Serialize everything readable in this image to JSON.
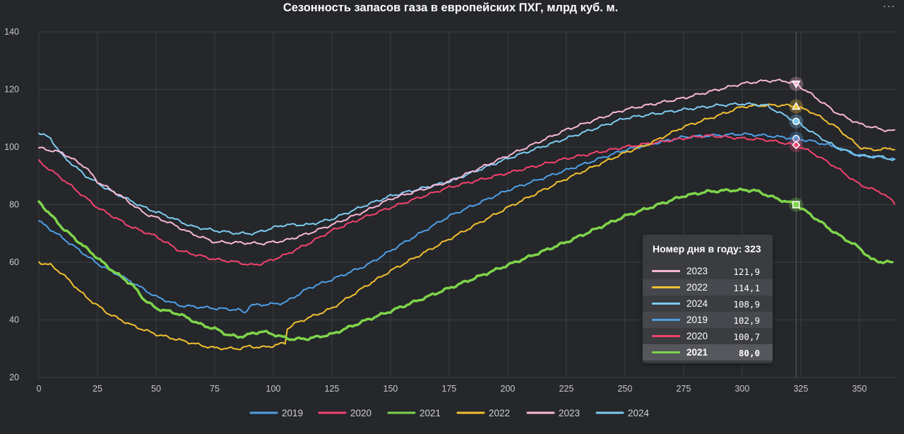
{
  "chart_data": {
    "type": "line",
    "title": "Сезонность запасов газа в европейских ПХГ, млрд куб. м.",
    "xlabel": "",
    "ylabel": "",
    "xlim": [
      0,
      366
    ],
    "ylim": [
      20,
      140
    ],
    "x_ticks": [
      "0",
      "25",
      "50",
      "75",
      "100",
      "125",
      "150",
      "175",
      "200",
      "225",
      "250",
      "275",
      "300",
      "325",
      "350"
    ],
    "y_ticks": [
      "20",
      "40",
      "60",
      "80",
      "100",
      "120",
      "140"
    ],
    "grid": true,
    "legend_position": "bottom",
    "cursor_day": 323,
    "series": [
      {
        "name": "2019",
        "color": "#4e9fe6",
        "width": 2,
        "points": [
          [
            0,
            74.3
          ],
          [
            10,
            68.5
          ],
          [
            25,
            59.5
          ],
          [
            40,
            53
          ],
          [
            50,
            48
          ],
          [
            60,
            45
          ],
          [
            75,
            44
          ],
          [
            85,
            43.5
          ],
          [
            88,
            42.5
          ],
          [
            90,
            45
          ],
          [
            100,
            45.5
          ],
          [
            105,
            46
          ],
          [
            115,
            51
          ],
          [
            125,
            54
          ],
          [
            140,
            59
          ],
          [
            150,
            64
          ],
          [
            175,
            76
          ],
          [
            200,
            85
          ],
          [
            225,
            92
          ],
          [
            250,
            99
          ],
          [
            275,
            103.5
          ],
          [
            300,
            104.5
          ],
          [
            310,
            104
          ],
          [
            323,
            102.9
          ],
          [
            330,
            102
          ],
          [
            340,
            100
          ],
          [
            350,
            97
          ],
          [
            360,
            96.5
          ],
          [
            365,
            95.5
          ]
        ]
      },
      {
        "name": "2020",
        "color": "#f2426c",
        "width": 2,
        "points": [
          [
            0,
            95
          ],
          [
            10,
            89
          ],
          [
            25,
            79
          ],
          [
            40,
            72
          ],
          [
            50,
            69
          ],
          [
            60,
            64
          ],
          [
            75,
            61
          ],
          [
            85,
            60
          ],
          [
            90,
            59
          ],
          [
            95,
            59.5
          ],
          [
            105,
            62.5
          ],
          [
            115,
            66.5
          ],
          [
            125,
            71
          ],
          [
            140,
            76
          ],
          [
            150,
            79
          ],
          [
            175,
            86
          ],
          [
            200,
            91
          ],
          [
            225,
            96
          ],
          [
            250,
            100
          ],
          [
            275,
            103
          ],
          [
            285,
            104
          ],
          [
            300,
            103
          ],
          [
            310,
            102.5
          ],
          [
            323,
            100.7
          ],
          [
            330,
            98
          ],
          [
            340,
            93
          ],
          [
            350,
            87
          ],
          [
            360,
            84
          ],
          [
            365,
            80.5
          ]
        ]
      },
      {
        "name": "2021",
        "color": "#7ed44a",
        "width": 3.5,
        "points": [
          [
            0,
            81
          ],
          [
            10,
            72
          ],
          [
            20,
            65
          ],
          [
            30,
            58
          ],
          [
            40,
            52
          ],
          [
            45,
            47
          ],
          [
            50,
            44
          ],
          [
            60,
            42
          ],
          [
            70,
            38
          ],
          [
            75,
            37
          ],
          [
            80,
            35
          ],
          [
            85,
            34
          ],
          [
            90,
            35
          ],
          [
            95,
            36
          ],
          [
            100,
            35
          ],
          [
            104,
            34
          ],
          [
            108,
            33.3
          ],
          [
            115,
            33.5
          ],
          [
            125,
            35
          ],
          [
            140,
            40
          ],
          [
            150,
            43
          ],
          [
            175,
            51
          ],
          [
            200,
            59
          ],
          [
            225,
            67
          ],
          [
            250,
            76
          ],
          [
            275,
            83
          ],
          [
            285,
            84.5
          ],
          [
            295,
            85
          ],
          [
            305,
            85
          ],
          [
            315,
            82
          ],
          [
            323,
            80
          ],
          [
            330,
            76
          ],
          [
            340,
            70
          ],
          [
            350,
            65
          ],
          [
            355,
            61
          ],
          [
            360,
            60
          ],
          [
            364,
            60
          ]
        ]
      },
      {
        "name": "2022",
        "color": "#f2c030",
        "width": 2,
        "points": [
          [
            0,
            60
          ],
          [
            5,
            59
          ],
          [
            10,
            56
          ],
          [
            20,
            48
          ],
          [
            30,
            42
          ],
          [
            40,
            38
          ],
          [
            50,
            35
          ],
          [
            60,
            33
          ],
          [
            70,
            31
          ],
          [
            75,
            30.2
          ],
          [
            85,
            30
          ],
          [
            90,
            30.8
          ],
          [
            95,
            30.4
          ],
          [
            100,
            31
          ],
          [
            105,
            32
          ],
          [
            106,
            37
          ],
          [
            110,
            39
          ],
          [
            125,
            44
          ],
          [
            140,
            52
          ],
          [
            150,
            57
          ],
          [
            175,
            68
          ],
          [
            200,
            79
          ],
          [
            225,
            89
          ],
          [
            250,
            98
          ],
          [
            260,
            101
          ],
          [
            275,
            107
          ],
          [
            290,
            111
          ],
          [
            300,
            114
          ],
          [
            310,
            114.5
          ],
          [
            318,
            114.5
          ],
          [
            323,
            114.1
          ],
          [
            330,
            112
          ],
          [
            340,
            107
          ],
          [
            350,
            100
          ],
          [
            355,
            99
          ],
          [
            365,
            99.5
          ]
        ]
      },
      {
        "name": "2023",
        "color": "#f8b8d6",
        "width": 2,
        "points": [
          [
            0,
            99.7
          ],
          [
            10,
            98
          ],
          [
            20,
            93
          ],
          [
            25,
            88
          ],
          [
            35,
            83
          ],
          [
            45,
            77
          ],
          [
            55,
            74
          ],
          [
            65,
            70
          ],
          [
            75,
            67
          ],
          [
            85,
            66.8
          ],
          [
            95,
            66.5
          ],
          [
            105,
            67.5
          ],
          [
            115,
            70
          ],
          [
            125,
            73
          ],
          [
            140,
            78
          ],
          [
            150,
            82
          ],
          [
            175,
            88
          ],
          [
            200,
            97
          ],
          [
            225,
            106
          ],
          [
            250,
            113
          ],
          [
            275,
            117
          ],
          [
            290,
            120
          ],
          [
            300,
            122
          ],
          [
            310,
            123
          ],
          [
            318,
            123
          ],
          [
            323,
            121.9
          ],
          [
            330,
            118
          ],
          [
            340,
            112
          ],
          [
            350,
            108
          ],
          [
            360,
            106
          ],
          [
            365,
            105.5
          ]
        ]
      },
      {
        "name": "2024",
        "color": "#7dcbf0",
        "width": 2,
        "points": [
          [
            0,
            105
          ],
          [
            5,
            103
          ],
          [
            10,
            97
          ],
          [
            20,
            90
          ],
          [
            30,
            85
          ],
          [
            45,
            79
          ],
          [
            55,
            76
          ],
          [
            65,
            72.5
          ],
          [
            75,
            71
          ],
          [
            85,
            70
          ],
          [
            92,
            70
          ],
          [
            100,
            72
          ],
          [
            105,
            73
          ],
          [
            115,
            73
          ],
          [
            125,
            75
          ],
          [
            140,
            80
          ],
          [
            150,
            83
          ],
          [
            175,
            88
          ],
          [
            200,
            96
          ],
          [
            225,
            103
          ],
          [
            250,
            110
          ],
          [
            275,
            113
          ],
          [
            290,
            114.5
          ],
          [
            300,
            115
          ],
          [
            310,
            114.5
          ],
          [
            318,
            111
          ],
          [
            323,
            108.9
          ],
          [
            330,
            105
          ],
          [
            340,
            100
          ],
          [
            350,
            97
          ],
          [
            360,
            96.5
          ],
          [
            365,
            95.5
          ]
        ]
      }
    ]
  },
  "tooltip": {
    "header": "Номер дня в году: 323",
    "rows": [
      {
        "name": "2023",
        "value": "121,9",
        "color": "#f8b8d6"
      },
      {
        "name": "2022",
        "value": "114,1",
        "color": "#f2c030"
      },
      {
        "name": "2024",
        "value": "108,9",
        "color": "#7dcbf0"
      },
      {
        "name": "2019",
        "value": "102,9",
        "color": "#4e9fe6"
      },
      {
        "name": "2020",
        "value": "100,7",
        "color": "#f2426c"
      },
      {
        "name": "2021",
        "value": "80,0",
        "color": "#7ed44a"
      }
    ]
  },
  "menu_icon": "more-horizontal-icon",
  "menu_glyph": "···",
  "colors": {
    "background": "#25272b",
    "grid": "#3c3e43",
    "axis_text": "#c8c8c8"
  }
}
